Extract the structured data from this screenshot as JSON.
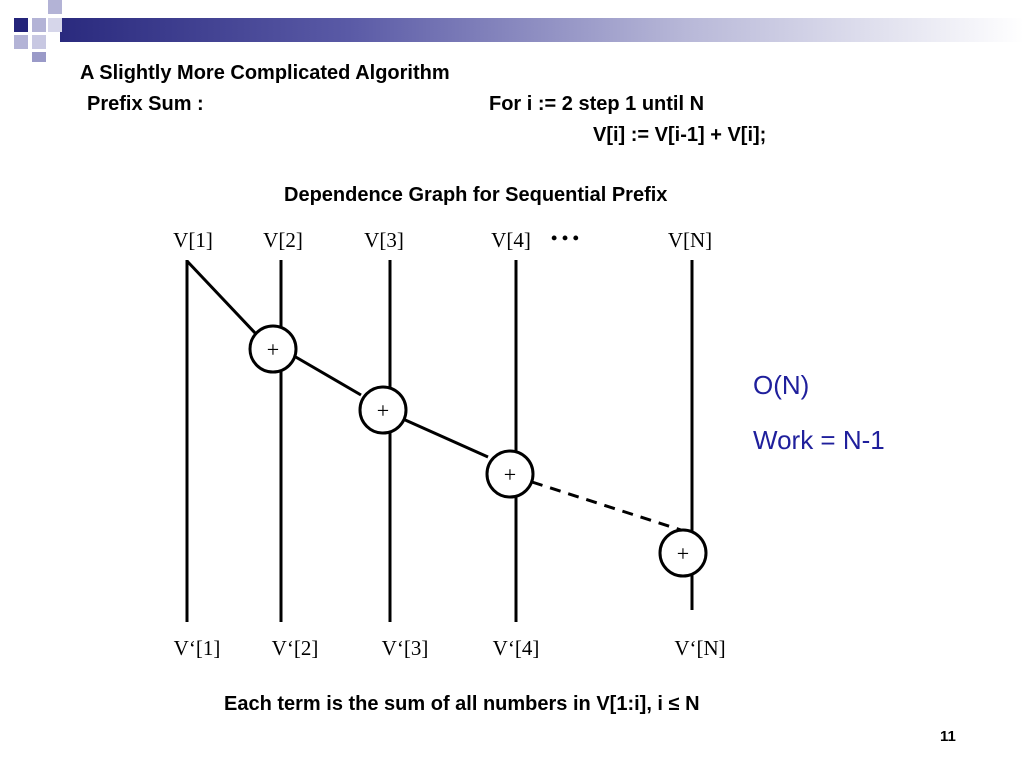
{
  "slide": {
    "title": "A Slightly More Complicated Algorithm",
    "prefix_label": "Prefix Sum :",
    "code_line1": "For i := 2 step 1 until N",
    "code_line2": "V[i] := V[i-1] + V[i];",
    "diagram_title": "Dependence Graph for Sequential Prefix",
    "complexity": "O(N)",
    "work": "Work = N-1",
    "caption": "Each term is the sum of all numbers in V[1:i], i ≤ N",
    "page_number": "11"
  },
  "graph": {
    "inputs": [
      "V[1]",
      "V[2]",
      "V[3]",
      "V[4]",
      "V[N]"
    ],
    "outputs": [
      "V‘[1]",
      "V‘[2]",
      "V‘[3]",
      "V‘[4]",
      "V‘[N]"
    ],
    "ellipsis": "• • •",
    "operator": "+"
  },
  "colors": {
    "accent_blue": "#1f1f9c",
    "navy_square": "#24247a",
    "light_square": "#b3b3d6"
  }
}
